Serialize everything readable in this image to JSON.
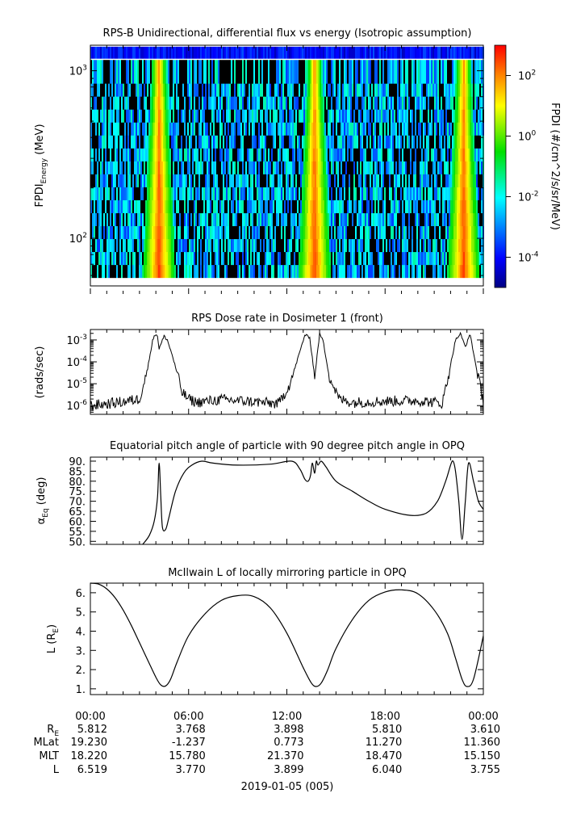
{
  "chart_data": [
    {
      "type": "heatmap",
      "title": "RPS-B  Unidirectional, differential flux vs energy (Isotropic assumption)",
      "ylabel_main": "FPDI",
      "ylabel_sub": "Energy",
      "ylabel_unit": " (MeV)",
      "yscale": "log",
      "ylim": [
        52,
        1420
      ],
      "y_ticks": [
        {
          "value": 100,
          "base": "10",
          "exp": "2"
        },
        {
          "value": 1000,
          "base": "10",
          "exp": "3"
        }
      ],
      "energy_range": [
        58,
        1000
      ],
      "bands": [
        {
          "label": "pass-1",
          "center_hours": 4.2,
          "width_hours": 1.0
        },
        {
          "label": "pass-2",
          "center_hours": 13.7,
          "width_hours": 1.0
        },
        {
          "label": "pass-3",
          "center_hours": 22.8,
          "width_hours": 1.0
        }
      ],
      "colorbar": {
        "label": "FPDI (#/cm^2/s/sr/MeV)",
        "log_range": [
          -5,
          3
        ],
        "ticks": [
          {
            "value": -4,
            "base": "10",
            "exp": "-4"
          },
          {
            "value": -2,
            "base": "10",
            "exp": "-2"
          },
          {
            "value": 0,
            "base": "10",
            "exp": "0"
          },
          {
            "value": 2,
            "base": "10",
            "exp": "2"
          }
        ]
      }
    },
    {
      "type": "line",
      "title": "RPS  Dose rate in Dosimeter 1 (front)",
      "ylabel": "(rads/sec)",
      "yscale": "log",
      "ylim": [
        4e-07,
        0.003
      ],
      "y_ticks": [
        {
          "value": 1e-06,
          "base": "10",
          "exp": "-6"
        },
        {
          "value": 1e-05,
          "base": "10",
          "exp": "-5"
        },
        {
          "value": 0.0001,
          "base": "10",
          "exp": "-4"
        },
        {
          "value": 0.001,
          "base": "10",
          "exp": "-3"
        }
      ],
      "series": [
        {
          "name": "dose",
          "x_hours": [
            0,
            1,
            2,
            3,
            3.5,
            3.8,
            4.0,
            4.1,
            4.2,
            4.5,
            4.7,
            5.0,
            5.3,
            5.6,
            6.0,
            6.5,
            8,
            10,
            11.5,
            12.2,
            12.8,
            13.1,
            13.4,
            13.7,
            14.0,
            14.2,
            14.6,
            15.2,
            16,
            18,
            20,
            21.5,
            21.9,
            22.3,
            22.6,
            22.9,
            23.2,
            23.5,
            24
          ],
          "values": [
            1e-06,
            1.2e-06,
            1.5e-06,
            2e-06,
            5e-05,
            0.001,
            0.0019,
            0.0015,
            0.0004,
            0.0015,
            0.001,
            0.0002,
            3e-05,
            4e-06,
            2e-06,
            1.4e-06,
            1.9e-06,
            1.5e-06,
            1.2e-06,
            1e-05,
            0.0003,
            0.0017,
            0.0013,
            2e-05,
            0.0019,
            0.001,
            2e-05,
            2e-06,
            1.4e-06,
            1.6e-06,
            1.7e-06,
            1.3e-06,
            3e-05,
            0.001,
            0.0019,
            0.0005,
            0.0018,
            0.0001,
            1.5e-06
          ]
        }
      ]
    },
    {
      "type": "line",
      "title": "Equatorial pitch angle of particle with 90 degree pitch angle in OPQ",
      "ylabel_main": "α",
      "ylabel_sub": "Eq",
      "ylabel_unit": " (deg)",
      "ylim": [
        48.5,
        92
      ],
      "y_ticks": [
        "50.",
        "55.",
        "60.",
        "65.",
        "70.",
        "75.",
        "80.",
        "85.",
        "90."
      ],
      "y_tick_values": [
        50,
        55,
        60,
        65,
        70,
        75,
        80,
        85,
        90
      ],
      "series": [
        {
          "name": "alpha_eq",
          "x_hours": [
            3.2,
            3.6,
            3.9,
            4.1,
            4.2,
            4.3,
            4.4,
            4.6,
            4.8,
            5.2,
            5.7,
            6.2,
            6.8,
            7.5,
            9,
            11,
            12.3,
            12.8,
            13.1,
            13.3,
            13.45,
            13.55,
            13.7,
            13.8,
            13.9,
            14.1,
            14.4,
            15,
            16,
            17,
            18,
            19.5,
            20.5,
            21.2,
            21.7,
            22.0,
            22.15,
            22.3,
            22.5,
            22.7,
            22.9,
            23.1,
            23.4,
            23.7,
            24
          ],
          "values": [
            48.5,
            53,
            60,
            72,
            89,
            72,
            57,
            56,
            62,
            75,
            84,
            88,
            90,
            89,
            88,
            88.5,
            90,
            86,
            81,
            80,
            83,
            89,
            84,
            90,
            88,
            90,
            87,
            80,
            75,
            70,
            66,
            63,
            64,
            70,
            80,
            88,
            90,
            85,
            70,
            51,
            70,
            89,
            80,
            70,
            66
          ]
        }
      ]
    },
    {
      "type": "line",
      "title": "McIlwain L of locally mirroring particle in OPQ",
      "ylabel_main": "L (R",
      "ylabel_sub": "E",
      "ylabel_unit": ")",
      "ylim": [
        0.7,
        6.5
      ],
      "y_ticks": [
        "1.",
        "2.",
        "3.",
        "4.",
        "5.",
        "6."
      ],
      "y_tick_values": [
        1,
        2,
        3,
        4,
        5,
        6
      ],
      "series": [
        {
          "name": "L",
          "x_hours": [
            0,
            0.5,
            1,
            1.5,
            2,
            2.5,
            3,
            3.5,
            4,
            4.3,
            4.6,
            4.9,
            5.3,
            6,
            7,
            8,
            9,
            10,
            11,
            12,
            13,
            13.5,
            13.8,
            14.1,
            14.5,
            15,
            16,
            17,
            18,
            19,
            20,
            21,
            21.8,
            22.3,
            22.7,
            23.0,
            23.4,
            24
          ],
          "values": [
            6.52,
            6.45,
            6.2,
            5.75,
            5.1,
            4.3,
            3.4,
            2.5,
            1.6,
            1.2,
            1.15,
            1.5,
            2.4,
            3.77,
            4.9,
            5.6,
            5.85,
            5.8,
            5.2,
            3.9,
            2.1,
            1.3,
            1.12,
            1.3,
            2.0,
            3.1,
            4.6,
            5.6,
            6.04,
            6.15,
            5.95,
            5.1,
            3.9,
            2.6,
            1.5,
            1.12,
            1.5,
            3.755
          ]
        }
      ]
    }
  ],
  "x_axis": {
    "range_hours": [
      0,
      24
    ],
    "tick_labels": [
      "00:00",
      "06:00",
      "12:00",
      "18:00",
      "00:00"
    ],
    "tick_hours": [
      0,
      6,
      12,
      18,
      24
    ],
    "date_label": "2019-01-05 (005)"
  },
  "ephemeris": {
    "row_labels": [
      "R",
      "MLat",
      "MLT",
      "L"
    ],
    "row_label_subs": [
      "E",
      "",
      "",
      ""
    ],
    "rows": [
      [
        "5.812",
        "3.768",
        "3.898",
        "5.810",
        "3.610"
      ],
      [
        "19.230",
        "-1.237",
        "0.773",
        "11.270",
        "11.360"
      ],
      [
        "18.220",
        "15.780",
        "21.370",
        "18.470",
        "15.150"
      ],
      [
        "6.519",
        "3.770",
        "3.899",
        "6.040",
        "3.755"
      ]
    ]
  }
}
